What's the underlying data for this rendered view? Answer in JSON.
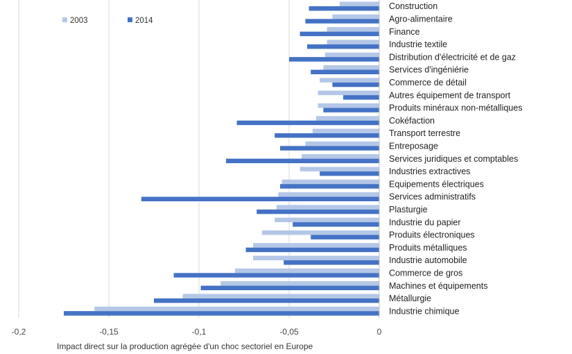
{
  "chart_data": {
    "type": "bar",
    "orientation": "horizontal",
    "xlabel": "Impact direct sur la production agrégée d'un choc sectoriel en Europe",
    "ylabel": "",
    "xlim": [
      -0.2,
      0
    ],
    "x_ticks": [
      "-0,2",
      "-0,15",
      "-0,1",
      "-0,05",
      "0"
    ],
    "grid": "vertical",
    "legend_position": "top-left",
    "categories": [
      "Construction",
      "Agro-alimentaire",
      "Finance",
      "Industrie textile",
      "Distribution d'électricité et de gaz",
      "Services d'ingéniérie",
      "Commerce de détail",
      "Autres équipement de transport",
      "Produits minéraux non-métalliques",
      "Cokéfaction",
      "Transport terrestre",
      "Entreposage",
      "Services juridiques et comptables",
      "Industries extractives",
      "Equipements électriques",
      "Services administratifs",
      "Plasturgie",
      "Industrie du papier",
      "Produits électroniques",
      "Produits métalliques",
      "Industrie automobile",
      "Commerce de gros",
      "Machines et équipements",
      "Métallurgie",
      "Industrie chimique"
    ],
    "series": [
      {
        "name": "2003",
        "color": "#b4c7e7",
        "values": [
          -0.022,
          -0.026,
          -0.029,
          -0.029,
          -0.03,
          -0.031,
          -0.033,
          -0.034,
          -0.034,
          -0.035,
          -0.037,
          -0.041,
          -0.043,
          -0.044,
          -0.054,
          -0.056,
          -0.057,
          -0.058,
          -0.065,
          -0.07,
          -0.07,
          -0.08,
          -0.088,
          -0.109,
          -0.158
        ]
      },
      {
        "name": "2014",
        "color": "#4472c4",
        "values": [
          -0.039,
          -0.041,
          -0.044,
          -0.04,
          -0.05,
          -0.038,
          -0.026,
          -0.02,
          -0.031,
          -0.079,
          -0.058,
          -0.055,
          -0.085,
          -0.033,
          -0.055,
          -0.132,
          -0.068,
          -0.048,
          -0.038,
          -0.074,
          -0.053,
          -0.114,
          -0.099,
          -0.125,
          -0.175
        ]
      }
    ]
  }
}
